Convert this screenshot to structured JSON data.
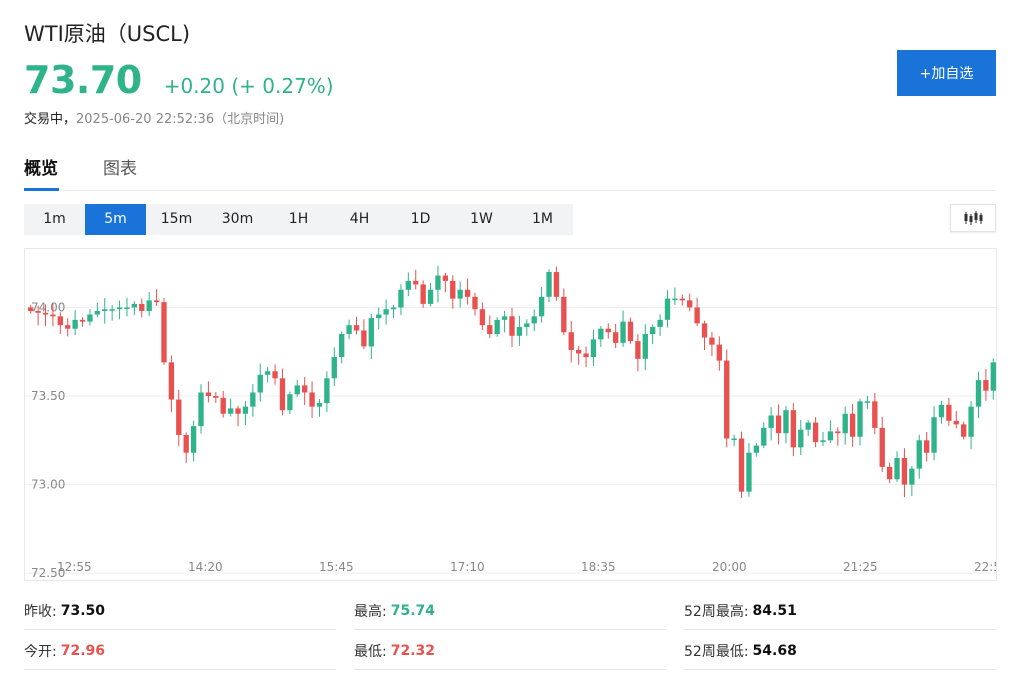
{
  "header": {
    "title": "WTI原油（USCL)",
    "price": "73.70",
    "change": "+0.20 (+ 0.27%)",
    "status": "交易中，",
    "timestamp": "2025-06-20 22:52:36（北京时间)",
    "add_button": "+加自选"
  },
  "tabs": [
    {
      "label": "概览",
      "active": true
    },
    {
      "label": "图表",
      "active": false
    }
  ],
  "periods": [
    {
      "label": "1m",
      "active": false
    },
    {
      "label": "5m",
      "active": true
    },
    {
      "label": "15m",
      "active": false
    },
    {
      "label": "30m",
      "active": false
    },
    {
      "label": "1H",
      "active": false
    },
    {
      "label": "4H",
      "active": false
    },
    {
      "label": "1D",
      "active": false
    },
    {
      "label": "1W",
      "active": false
    },
    {
      "label": "1M",
      "active": false
    }
  ],
  "chart_type_icon": "candlestick-icon",
  "colors": {
    "up": "#2fb38a",
    "down": "#e8514f",
    "accent": "#1a73d9"
  },
  "chart_data": {
    "type": "candlestick",
    "y_ticks": [
      "74.00",
      "73.50",
      "73.00",
      "72.50"
    ],
    "y_tick_values": [
      74.0,
      73.5,
      73.0,
      72.5
    ],
    "x_ticks": [
      "12:55",
      "14:20",
      "15:45",
      "17:10",
      "18:35",
      "20:00",
      "21:25",
      "22:5"
    ],
    "ylim": [
      72.45,
      74.33
    ],
    "close": [
      73.98,
      73.97,
      73.96,
      73.95,
      73.9,
      73.88,
      73.93,
      73.92,
      73.96,
      73.98,
      73.99,
      73.99,
      74.0,
      74.0,
      74.02,
      73.98,
      74.04,
      74.03,
      73.69,
      73.48,
      73.28,
      73.18,
      73.33,
      73.52,
      73.5,
      73.49,
      73.4,
      73.43,
      73.4,
      73.44,
      73.52,
      73.62,
      73.64,
      73.6,
      73.42,
      73.51,
      73.56,
      73.52,
      73.44,
      73.46,
      73.6,
      73.72,
      73.85,
      73.9,
      73.87,
      73.78,
      73.94,
      73.96,
      73.99,
      74.0,
      74.1,
      74.15,
      74.13,
      74.02,
      74.1,
      74.18,
      74.15,
      74.05,
      74.1,
      74.06,
      73.99,
      73.9,
      73.85,
      73.93,
      73.95,
      73.84,
      73.89,
      73.91,
      73.95,
      74.06,
      74.2,
      74.06,
      73.86,
      73.76,
      73.74,
      73.72,
      73.82,
      73.88,
      73.86,
      73.8,
      73.92,
      73.81,
      73.71,
      73.85,
      73.89,
      73.93,
      74.05,
      74.05,
      74.04,
      74.0,
      73.91,
      73.83,
      73.79,
      73.7,
      73.26,
      73.26,
      72.96,
      73.18,
      73.22,
      73.32,
      73.39,
      73.29,
      73.42,
      73.21,
      73.31,
      73.35,
      73.24,
      73.25,
      73.3,
      73.29,
      73.4,
      73.27,
      73.47,
      73.47,
      73.32,
      73.1,
      73.03,
      73.15,
      73.0,
      73.09,
      73.25,
      73.18,
      73.38,
      73.45,
      73.36,
      73.34,
      73.27,
      73.44,
      73.59,
      73.53,
      73.69
    ]
  },
  "stats": [
    [
      {
        "label": "昨收:",
        "value": "73.50",
        "tone": "dark"
      },
      {
        "label": "最高:",
        "value": "75.74",
        "tone": "green"
      },
      {
        "label": "52周最高:",
        "value": "84.51",
        "tone": "dark"
      }
    ],
    [
      {
        "label": "今开:",
        "value": "72.96",
        "tone": "red"
      },
      {
        "label": "最低:",
        "value": "72.32",
        "tone": "red"
      },
      {
        "label": "52周最低:",
        "value": "54.68",
        "tone": "dark"
      }
    ]
  ]
}
